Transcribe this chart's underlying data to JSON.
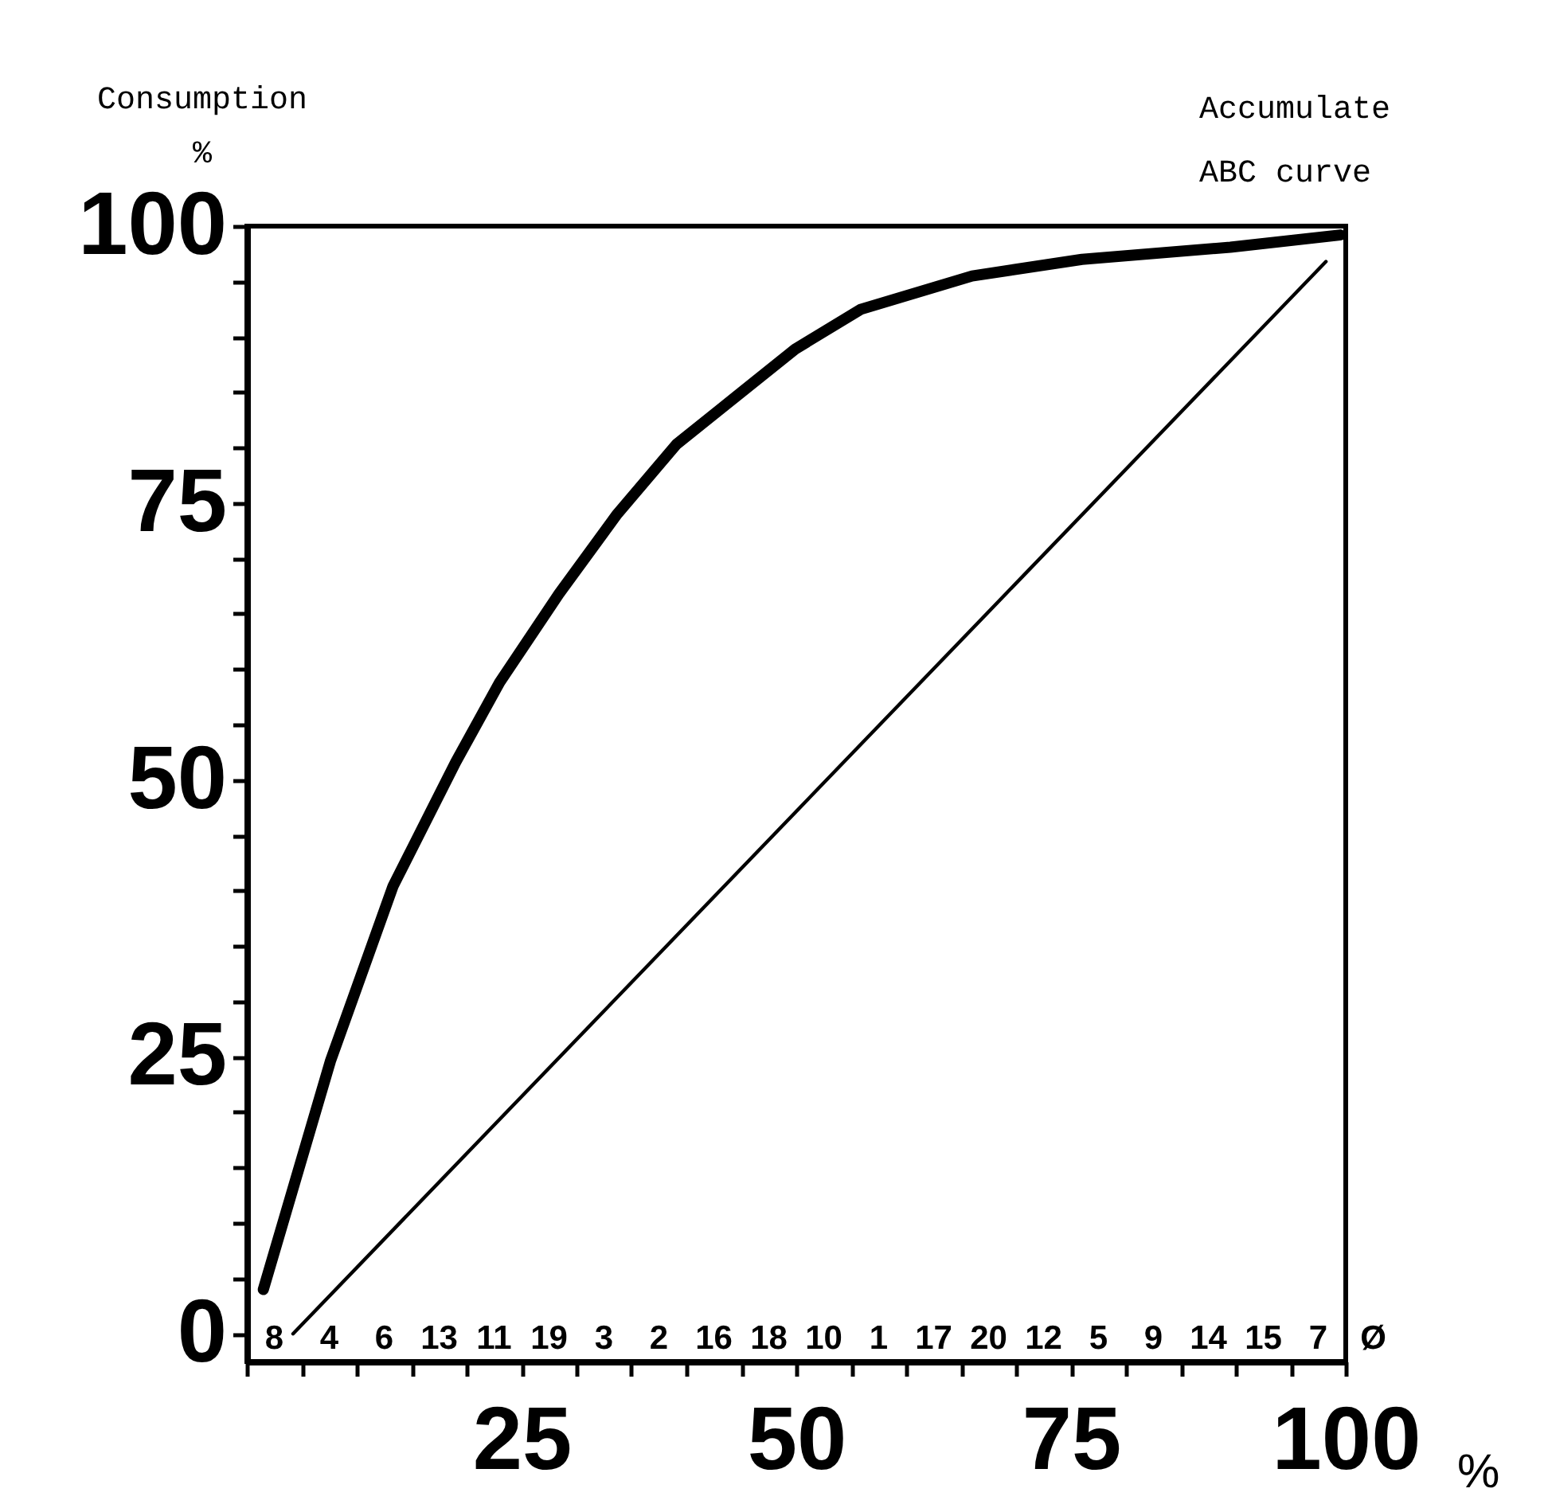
{
  "chart_data": {
    "type": "line",
    "title": "Accumulate",
    "subtitle": "ABC curve",
    "ylabel": "Consumption %",
    "xlabel": "%",
    "series": [
      {
        "color": "#000000",
        "x": [
          1.5,
          7.6,
          13.3,
          19.0,
          23.0,
          28.4,
          33.7,
          39.1,
          44.5,
          49.9,
          55.9,
          66.0,
          76.0,
          89.5,
          99.5
        ],
        "values": [
          4.0,
          24.6,
          40.4,
          51.6,
          58.8,
          66.8,
          74.0,
          80.3,
          84.6,
          88.9,
          92.5,
          95.5,
          97.0,
          98.1,
          99.2
        ]
      },
      {
        "color": "#000000",
        "x": [
          4.2,
          98.2
        ],
        "values": [
          0.0,
          96.8
        ]
      }
    ],
    "xlim": [
      0,
      100
    ],
    "ylim": [
      -2.5,
      100
    ],
    "xticks": [
      {
        "value": 0,
        "label": null
      },
      {
        "value": 5,
        "label": null
      },
      {
        "value": 10,
        "label": null
      },
      {
        "value": 15,
        "label": null
      },
      {
        "value": 20,
        "label": null
      },
      25,
      {
        "value": 30,
        "label": null
      },
      {
        "value": 35,
        "label": null
      },
      {
        "value": 40,
        "label": null
      },
      {
        "value": 45,
        "label": null
      },
      50,
      {
        "value": 55,
        "label": null
      },
      {
        "value": 60,
        "label": null
      },
      {
        "value": 65,
        "label": null
      },
      {
        "value": 70,
        "label": null
      },
      75,
      {
        "value": 80,
        "label": null
      },
      {
        "value": 85,
        "label": null
      },
      {
        "value": 90,
        "label": null
      },
      {
        "value": 95,
        "label": null
      },
      100
    ],
    "yticks": [
      0,
      {
        "value": 5,
        "label": null
      },
      {
        "value": 10,
        "label": null
      },
      {
        "value": 15,
        "label": null
      },
      {
        "value": 20,
        "label": null
      },
      25,
      {
        "value": 30,
        "label": null
      },
      {
        "value": 35,
        "label": null
      },
      {
        "value": 40,
        "label": null
      },
      {
        "value": 45,
        "label": null
      },
      50,
      {
        "value": 55,
        "label": null
      },
      {
        "value": 60,
        "label": null
      },
      {
        "value": 65,
        "label": null
      },
      {
        "value": 70,
        "label": null
      },
      75,
      {
        "value": 80,
        "label": null
      },
      {
        "value": 85,
        "label": null
      },
      {
        "value": 90,
        "label": null
      },
      {
        "value": 95,
        "label": null
      },
      100
    ],
    "grid": false,
    "marker": "none",
    "line_style": "solid",
    "annotations": [
      "8",
      "4",
      "6",
      "13",
      "11",
      "19",
      "3",
      "2",
      "16",
      "18",
      "10",
      "1",
      "17",
      "20",
      "12",
      "5",
      "9",
      "14",
      "15",
      "7",
      "Ø"
    ]
  }
}
